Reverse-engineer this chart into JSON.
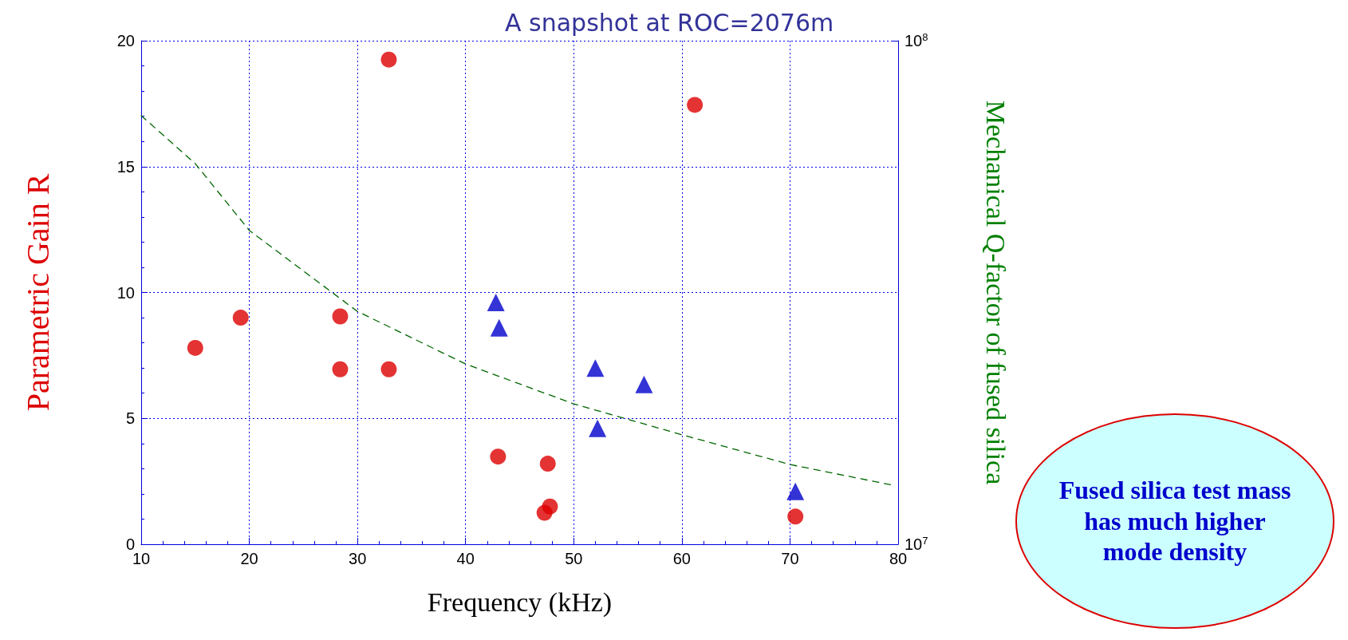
{
  "chart_data": {
    "type": "scatter",
    "title": "A snapshot at ROC=2076m",
    "xlabel": "Frequency (kHz)",
    "ylabel": "Parametric Gain R",
    "y2label": "Mechanical Q-factor of fused silica",
    "annotations": [
      "Fused silica test mass has much higher mode density"
    ],
    "xlim": [
      10,
      80
    ],
    "xticks": [
      10,
      20,
      30,
      40,
      50,
      60,
      70,
      80
    ],
    "ylim": [
      0,
      20
    ],
    "yticks": [
      0,
      5,
      10,
      15,
      20
    ],
    "y2lim": [
      10000000,
      100000000
    ],
    "y2ticks": [
      {
        "value": 10000000,
        "label": "10$^{7}$"
      },
      {
        "value": 100000000,
        "label": "10$^{8}$"
      }
    ],
    "log": "y2",
    "grid": true,
    "legend": false,
    "series": [
      {
        "marker": "circle",
        "color": "#dd0000",
        "x": [
          15.0,
          19.2,
          28.4,
          28.4,
          32.9,
          32.9,
          43.0,
          47.6,
          47.8,
          47.3,
          61.2,
          70.5
        ],
        "values": [
          7.8,
          9.0,
          9.05,
          6.95,
          19.25,
          6.95,
          3.48,
          3.2,
          1.5,
          1.25,
          17.45,
          1.1
        ]
      },
      {
        "marker": "triangle",
        "color": "#0000cc",
        "x": [
          42.8,
          43.1,
          52.0,
          56.5,
          52.2,
          70.5
        ],
        "values": [
          9.6,
          8.6,
          7.0,
          6.35,
          4.6,
          2.1
        ]
      },
      {
        "type": "line",
        "marker": "none",
        "line_style": "dashed",
        "axis": "y2",
        "color": "#006600",
        "x": [
          10,
          15,
          20,
          30,
          40,
          50,
          60,
          70,
          79.5
        ],
        "values": [
          71000000,
          57000000,
          42000000,
          29000000,
          22800000,
          19000000,
          16500000,
          14400000,
          13100000
        ]
      }
    ]
  }
}
